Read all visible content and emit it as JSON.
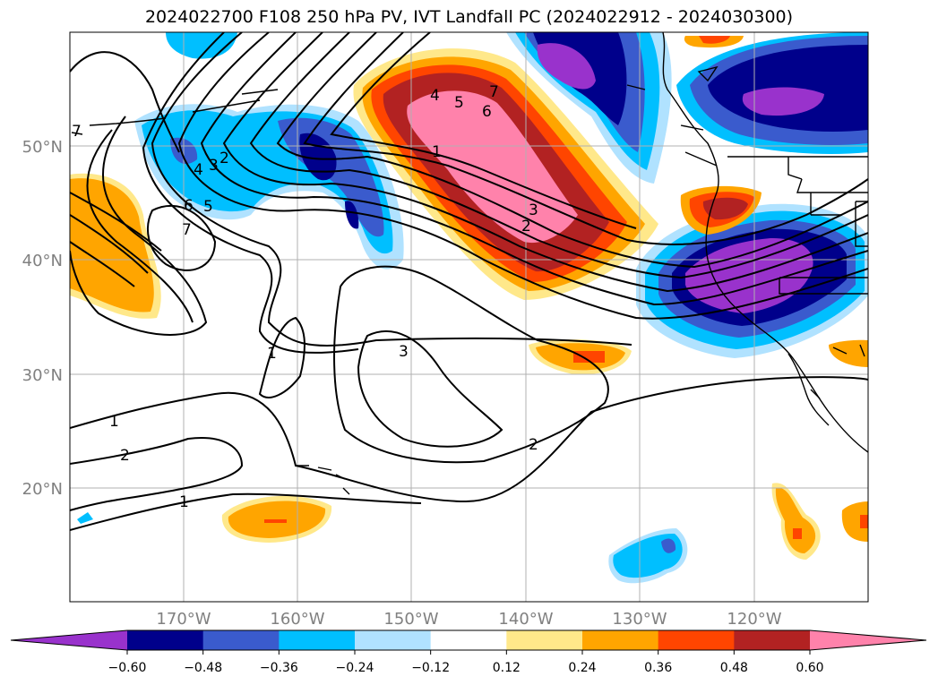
{
  "title": "2024022700 F108 250 hPa PV, IVT Landfall PC (2024022912 - 2024030300)",
  "lat_labels": [
    "50°N",
    "40°N",
    "30°N",
    "20°N"
  ],
  "lon_labels": [
    "170°W",
    "160°W",
    "150°W",
    "140°W",
    "130°W",
    "120°W"
  ],
  "colorbar": {
    "ticks": [
      "−0.60",
      "−0.48",
      "−0.36",
      "−0.24",
      "−0.12",
      "0.12",
      "0.24",
      "0.36",
      "0.48",
      "0.60"
    ],
    "colors": [
      "#9932cc",
      "#00008b",
      "#3a5bcd",
      "#00bfff",
      "#b0e2ff",
      "#ffffff",
      "#ffe88a",
      "#ffa500",
      "#ff4500",
      "#b22222",
      "#ff82ab"
    ],
    "extend": "both"
  },
  "contour_labels": [
    "1",
    "2",
    "3",
    "4",
    "5",
    "6",
    "7"
  ],
  "colors": {
    "contour": "#000000",
    "grid": "#b0b0b0",
    "tick_label": "#808080"
  }
}
